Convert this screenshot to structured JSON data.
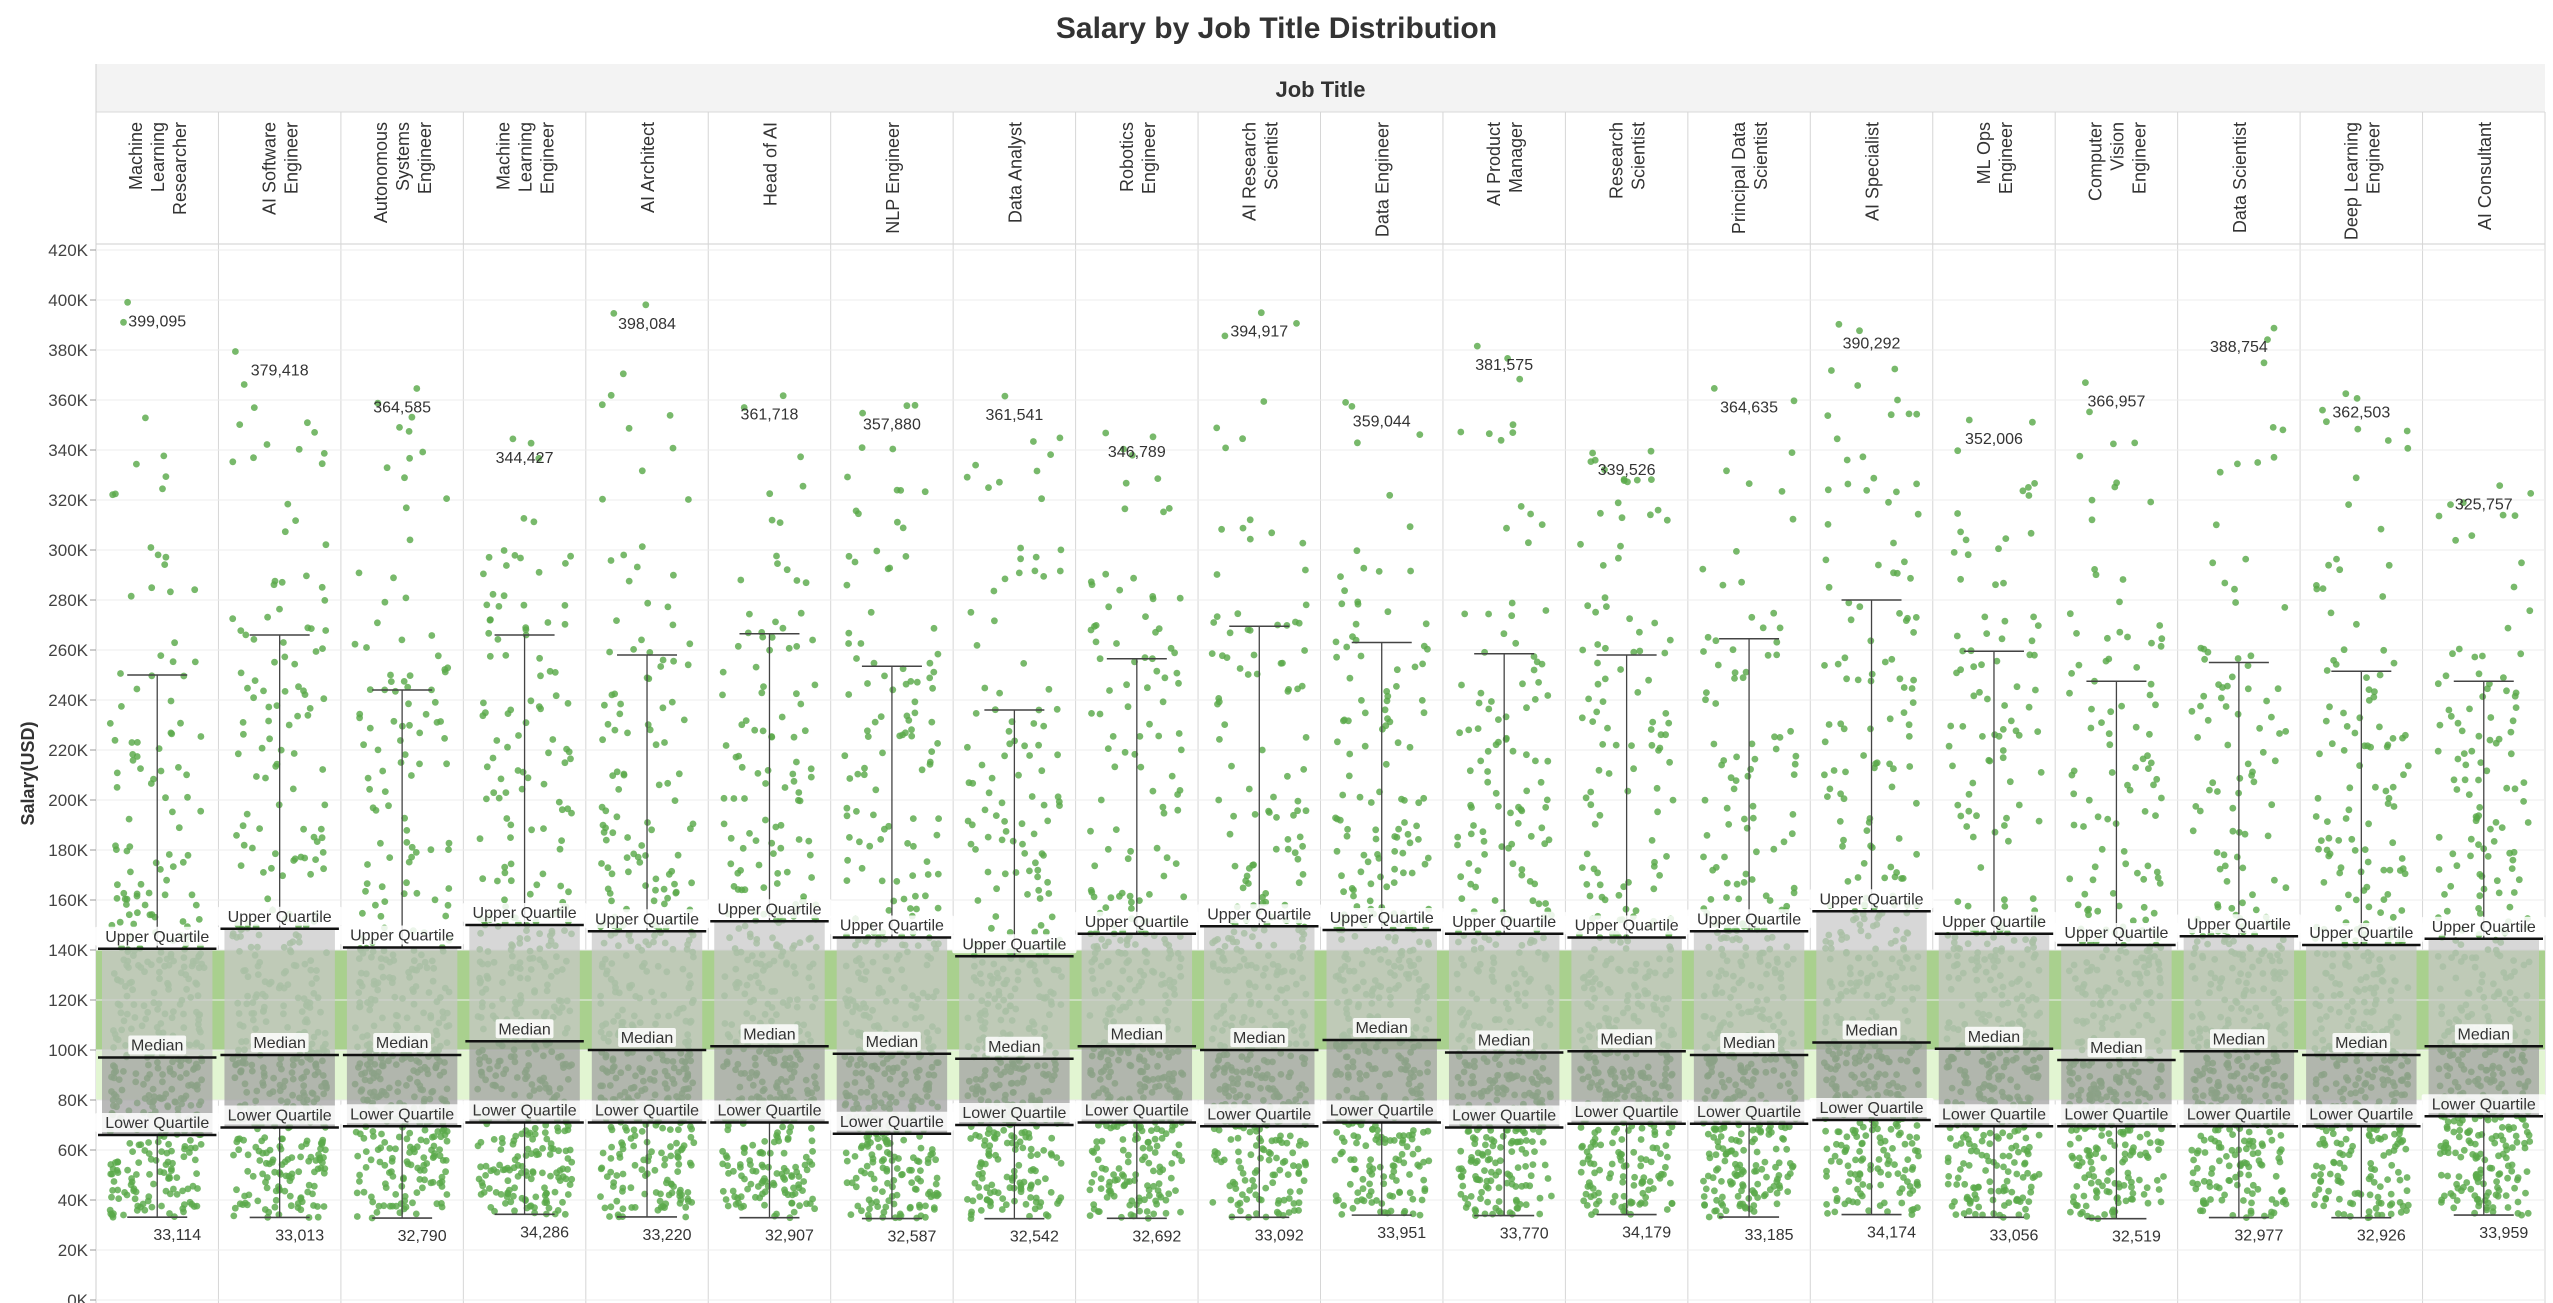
{
  "title": "Salary by Job Title Distribution",
  "column_header": "Job Title",
  "colors": {
    "dots": "#5aaa4a",
    "band_dark": "#a9d08e",
    "band_light": "#e2f5d2",
    "box": "#b5b5b5",
    "whisker": "#444444"
  },
  "ref_labels": {
    "upper": "Upper Quartile",
    "median": "Median",
    "lower": "Lower Quartile"
  },
  "chart_data": {
    "type": "box-and-whisker (jitter scatter)",
    "title": "Salary by Job Title Distribution",
    "xlabel": "Job Title",
    "ylabel": "Salary(USD)",
    "ylim": [
      0,
      420000
    ],
    "y_ticks": [
      "0K",
      "20K",
      "40K",
      "60K",
      "80K",
      "100K",
      "120K",
      "140K",
      "160K",
      "180K",
      "200K",
      "220K",
      "240K",
      "260K",
      "280K",
      "300K",
      "320K",
      "340K",
      "360K",
      "380K",
      "400K",
      "420K"
    ],
    "grid": true,
    "shaded_bands": [
      {
        "from": 80000,
        "to": 100000
      },
      {
        "from": 100000,
        "to": 140000
      }
    ],
    "categories": [
      {
        "name": "Machine Learning Researcher",
        "lines": [
          "Machine",
          "Learning",
          "Researcher"
        ],
        "min": 33114,
        "q1": 66000,
        "median": 97000,
        "q3": 140500,
        "whisker_top": 250000,
        "max": 399095
      },
      {
        "name": "AI Software Engineer",
        "lines": [
          "AI Software",
          "Engineer"
        ],
        "min": 33013,
        "q1": 69000,
        "median": 98000,
        "q3": 148500,
        "whisker_top": 266000,
        "max": 379418
      },
      {
        "name": "Autonomous Systems Engineer",
        "lines": [
          "Autonomous",
          "Systems",
          "Engineer"
        ],
        "min": 32790,
        "q1": 69500,
        "median": 98000,
        "q3": 141000,
        "whisker_top": 244000,
        "max": 364585
      },
      {
        "name": "Machine Learning Engineer",
        "lines": [
          "Machine",
          "Learning",
          "Engineer"
        ],
        "min": 34286,
        "q1": 71000,
        "median": 103500,
        "q3": 150000,
        "whisker_top": 266000,
        "max": 344427
      },
      {
        "name": "AI Architect",
        "lines": [
          "AI Architect"
        ],
        "min": 33220,
        "q1": 71000,
        "median": 100000,
        "q3": 147500,
        "whisker_top": 258000,
        "max": 398084
      },
      {
        "name": "Head of AI",
        "lines": [
          "Head of AI"
        ],
        "min": 32907,
        "q1": 71000,
        "median": 101500,
        "q3": 151500,
        "whisker_top": 266500,
        "max": 361718
      },
      {
        "name": "NLP Engineer",
        "lines": [
          "NLP Engineer"
        ],
        "min": 32587,
        "q1": 66500,
        "median": 98500,
        "q3": 145000,
        "whisker_top": 253500,
        "max": 357880
      },
      {
        "name": "Data Analyst",
        "lines": [
          "Data Analyst"
        ],
        "min": 32542,
        "q1": 70000,
        "median": 96500,
        "q3": 137500,
        "whisker_top": 236000,
        "max": 361541
      },
      {
        "name": "Robotics Engineer",
        "lines": [
          "Robotics",
          "Engineer"
        ],
        "min": 32692,
        "q1": 71000,
        "median": 101500,
        "q3": 146500,
        "whisker_top": 256500,
        "max": 346789
      },
      {
        "name": "AI Research Scientist",
        "lines": [
          "AI Research",
          "Scientist"
        ],
        "min": 33092,
        "q1": 69500,
        "median": 100000,
        "q3": 149500,
        "whisker_top": 269500,
        "max": 394917
      },
      {
        "name": "Data Engineer",
        "lines": [
          "Data Engineer"
        ],
        "min": 33951,
        "q1": 71000,
        "median": 104000,
        "q3": 148000,
        "whisker_top": 263000,
        "max": 359044
      },
      {
        "name": "AI Product Manager",
        "lines": [
          "AI Product",
          "Manager"
        ],
        "min": 33770,
        "q1": 69000,
        "median": 99000,
        "q3": 146500,
        "whisker_top": 258500,
        "max": 381575
      },
      {
        "name": "Research Scientist",
        "lines": [
          "Research",
          "Scientist"
        ],
        "min": 34179,
        "q1": 70500,
        "median": 99500,
        "q3": 145000,
        "whisker_top": 258000,
        "max": 339526
      },
      {
        "name": "Principal Data Scientist",
        "lines": [
          "Principal Data",
          "Scientist"
        ],
        "min": 33185,
        "q1": 70500,
        "median": 98000,
        "q3": 147500,
        "whisker_top": 264500,
        "max": 364635
      },
      {
        "name": "AI Specialist",
        "lines": [
          "AI Specialist"
        ],
        "min": 34174,
        "q1": 72000,
        "median": 103000,
        "q3": 155500,
        "whisker_top": 280000,
        "max": 390292
      },
      {
        "name": "ML Ops Engineer",
        "lines": [
          "ML Ops",
          "Engineer"
        ],
        "min": 33056,
        "q1": 69500,
        "median": 100500,
        "q3": 146500,
        "whisker_top": 259500,
        "max": 352006
      },
      {
        "name": "Computer Vision Engineer",
        "lines": [
          "Computer",
          "Vision",
          "Engineer"
        ],
        "min": 32519,
        "q1": 69500,
        "median": 96000,
        "q3": 142000,
        "whisker_top": 247500,
        "max": 366957
      },
      {
        "name": "Data Scientist",
        "lines": [
          "Data Scientist"
        ],
        "min": 32977,
        "q1": 69500,
        "median": 99500,
        "q3": 145500,
        "whisker_top": 255000,
        "max": 388754
      },
      {
        "name": "Deep Learning Engineer",
        "lines": [
          "Deep Learning",
          "Engineer"
        ],
        "min": 32926,
        "q1": 69500,
        "median": 98000,
        "q3": 142000,
        "whisker_top": 251500,
        "max": 362503
      },
      {
        "name": "AI Consultant",
        "lines": [
          "AI Consultant"
        ],
        "min": 33959,
        "q1": 73500,
        "median": 101500,
        "q3": 144500,
        "whisker_top": 247500,
        "max": 325757
      }
    ],
    "points_per_category": 420
  }
}
